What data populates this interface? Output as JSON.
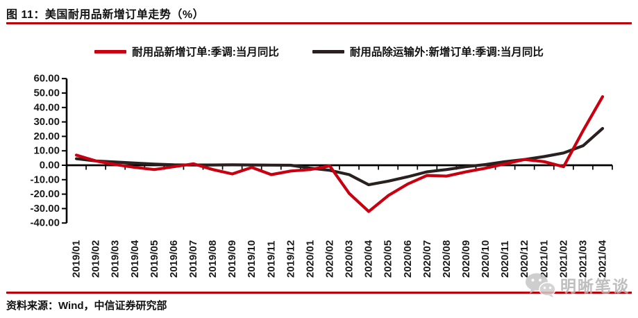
{
  "header": {
    "title": "图 11：美国耐用品新增订单走势（%）"
  },
  "theme": {
    "accent_red": "#BE0007",
    "series_red": "#C8000F",
    "series_black": "#292120",
    "axis_color": "#000000",
    "watermark_gray": "#BDBDBD"
  },
  "chart_data": {
    "type": "line",
    "title": "美国耐用品新增订单走势（%）",
    "xlabel": "",
    "ylabel": "",
    "ylim": [
      -40,
      60
    ],
    "grid": false,
    "legend_position": "top-center",
    "yticks": [
      60,
      50,
      40,
      30,
      20,
      10,
      0,
      -10,
      -20,
      -30,
      -40
    ],
    "ytick_labels": [
      "60.00",
      "50.00",
      "40.00",
      "30.00",
      "20.00",
      "10.00",
      "0.00",
      "-10.00",
      "-20.00",
      "-30.00",
      "-40.00"
    ],
    "categories": [
      "2019/01",
      "2019/02",
      "2019/03",
      "2019/04",
      "2019/05",
      "2019/06",
      "2019/07",
      "2019/08",
      "2019/09",
      "2019/10",
      "2019/11",
      "2019/12",
      "2020/01",
      "2020/02",
      "2020/03",
      "2020/04",
      "2020/05",
      "2020/06",
      "2020/07",
      "2020/08",
      "2020/09",
      "2020/10",
      "2020/11",
      "2020/12",
      "2021/01",
      "2021/02",
      "2021/03",
      "2021/04"
    ],
    "series": [
      {
        "name": "耐用品新增订单:季调:当月同比",
        "color": "#C8000F",
        "values": [
          7,
          3,
          0.5,
          -1.5,
          -3,
          -1,
          1,
          -3,
          -6,
          -1.5,
          -6.5,
          -4,
          -3,
          -0.5,
          -19.5,
          -32,
          -21,
          -13,
          -7,
          -7.5,
          -4.5,
          -2,
          1,
          4,
          2.5,
          -1,
          24,
          47.5
        ]
      },
      {
        "name": "耐用品除运输外:新增订单:季调:当月同比",
        "color": "#292120",
        "values": [
          4.5,
          3,
          2.2,
          1.5,
          0.8,
          0.3,
          0.2,
          0.2,
          0.3,
          0.2,
          0.1,
          0,
          -2,
          -3.5,
          -6.5,
          -13.5,
          -11,
          -8,
          -4.5,
          -3,
          -1,
          0.5,
          2.5,
          4,
          6,
          8.5,
          13.5,
          25.5
        ]
      }
    ]
  },
  "footer": {
    "source": "资料来源：Wind，中信证券研究部"
  },
  "watermark": {
    "text": "明晰笔谈",
    "icon": "wechat-icon"
  }
}
